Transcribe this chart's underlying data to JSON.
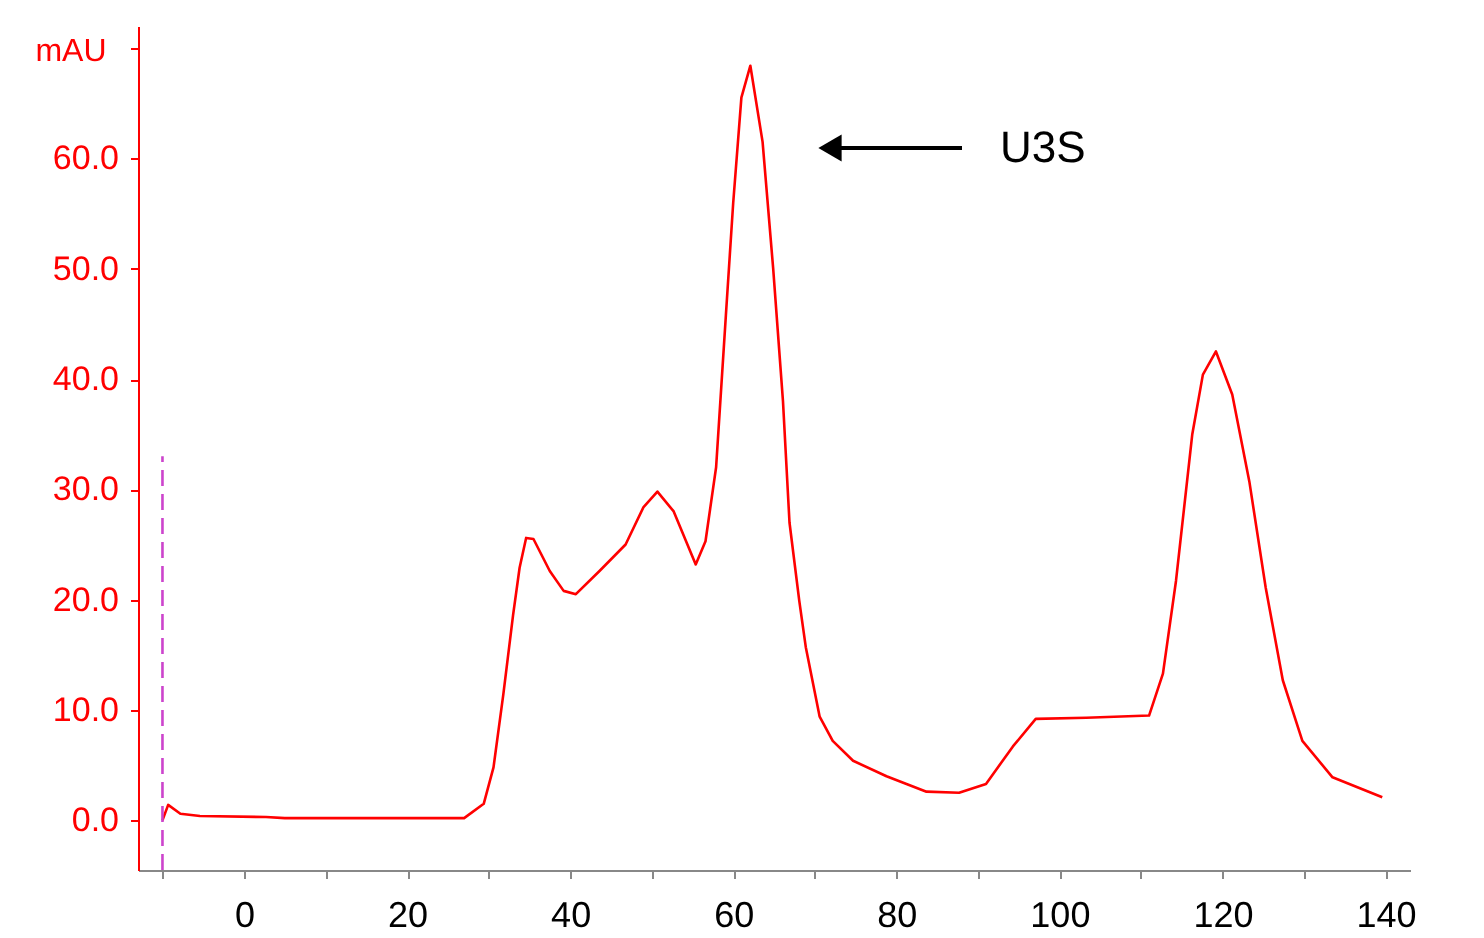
{
  "chart_data": {
    "type": "line",
    "ylabel": "mAU",
    "xlim": [
      -13,
      143
    ],
    "ylim": [
      -4.5,
      72
    ],
    "xticks": [
      {
        "value": -10,
        "label": null
      },
      0,
      {
        "value": 10,
        "label": null
      },
      20,
      {
        "value": 30,
        "label": null
      },
      40,
      {
        "value": 50,
        "label": null
      },
      60,
      {
        "value": 70,
        "label": null
      },
      80,
      {
        "value": 90,
        "label": null
      },
      100,
      {
        "value": 110,
        "label": null
      },
      120,
      {
        "value": 130,
        "label": null
      },
      140
    ],
    "yticks": [
      {
        "value": 0,
        "label": "0.0"
      },
      {
        "value": 10,
        "label": "10.0"
      },
      {
        "value": 20,
        "label": "20.0"
      },
      {
        "value": 30,
        "label": "30.0"
      },
      {
        "value": 40,
        "label": "40.0"
      },
      {
        "value": 50,
        "label": "50.0"
      },
      {
        "value": 60,
        "label": "60.0"
      },
      {
        "value": 70,
        "label": null
      }
    ],
    "grid": false,
    "marker": "none",
    "annotations": [
      "U3S"
    ],
    "series": [
      {
        "color": "#ff0000",
        "line_style": "solid",
        "x": [
          -10,
          -9.3,
          -7.8,
          -5.4,
          2.7,
          5,
          15,
          27,
          29.4,
          30.6,
          31.8,
          33,
          33.8,
          34.6,
          35.5,
          37.5,
          39.2,
          40.7,
          43.6,
          46.8,
          49,
          50.7,
          52.7,
          55.4,
          56.6,
          57.9,
          59.1,
          60,
          61,
          62.1,
          63.6,
          64.9,
          66.1,
          66.9,
          68.1,
          68.9,
          70.6,
          72.2,
          74.7,
          78.8,
          83.7,
          87.7,
          91,
          94.3,
          97.1,
          103.3,
          111,
          112.7,
          114.3,
          116.3,
          117.6,
          119.2,
          121.2,
          123.3,
          125.3,
          127.4,
          129.8,
          133.5,
          139.6
        ],
        "values": [
          0,
          1.4,
          0.6,
          0.4,
          0.3,
          0.2,
          0.2,
          0.2,
          1.5,
          4.8,
          11.4,
          18.6,
          22.9,
          25.6,
          25.5,
          22.6,
          20.8,
          20.5,
          22.6,
          25,
          28.4,
          29.8,
          28,
          23.2,
          25.3,
          32,
          45.8,
          56,
          65.5,
          68.4,
          61.5,
          50,
          38,
          27,
          19.9,
          15.7,
          9.4,
          7.2,
          5.4,
          4,
          2.6,
          2.5,
          3.3,
          6.7,
          9.2,
          9.3,
          9.5,
          13.3,
          21.7,
          35,
          40.4,
          42.5,
          38.6,
          30.7,
          21.1,
          12.7,
          7.2,
          3.9,
          2.1
        ]
      },
      {
        "color": "#cc44cc",
        "line_style": "dashed",
        "x": [
          -10,
          -10
        ],
        "values": [
          -4.5,
          33
        ]
      }
    ]
  }
}
